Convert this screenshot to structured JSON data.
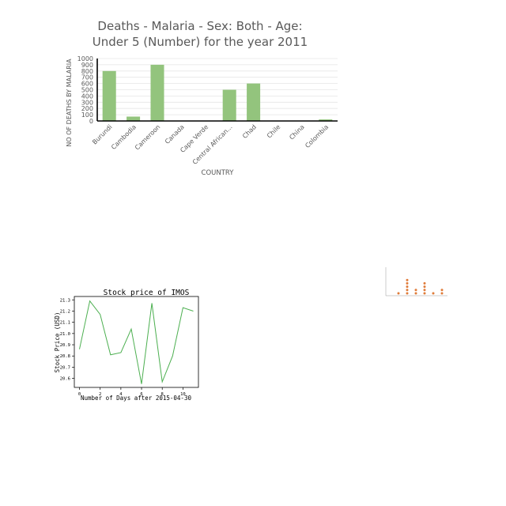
{
  "chart_data": [
    {
      "type": "bar",
      "title_line1": "Deaths - Malaria - Sex: Both - Age:",
      "title_line2": "Under 5 (Number) for the year 2011",
      "xlabel": "COUNTRY",
      "ylabel": "NO OF DEATHS BY MALARIA",
      "categories": [
        "Burundi",
        "Cambodia",
        "Cameroon",
        "Canada",
        "Cape Verde",
        "Central African...",
        "Chad",
        "Chile",
        "China",
        "Colombia"
      ],
      "values": [
        800,
        70,
        900,
        0,
        0,
        500,
        600,
        0,
        0,
        25
      ],
      "yticks": [
        "0",
        "100",
        "200",
        "300",
        "400",
        "500",
        "600",
        "700",
        "800",
        "900",
        "1000"
      ],
      "ylim": [
        0,
        1000
      ],
      "grid": true,
      "color": "#93c47d"
    },
    {
      "type": "line",
      "title": "Stock price of IMOS",
      "xlabel": "Number of Days after 2015-04-30",
      "ylabel": "Stock Price (USD)",
      "x": [
        0,
        1,
        2,
        3,
        4,
        5,
        6,
        7,
        8,
        9,
        10,
        11
      ],
      "values": [
        20.86,
        21.29,
        21.17,
        20.81,
        20.83,
        21.04,
        20.55,
        21.27,
        20.57,
        20.8,
        21.23,
        21.2
      ],
      "xticks": [
        "0",
        "2",
        "4",
        "6",
        "8",
        "10"
      ],
      "yticks": [
        "20.6",
        "20.7",
        "20.8",
        "20.9",
        "21.0",
        "21.1",
        "21.2",
        "21.3"
      ],
      "xlim": [
        -0.5,
        11.5
      ],
      "ylim": [
        20.52,
        21.33
      ],
      "grid": false,
      "color": "#4caf50"
    },
    {
      "type": "scatter",
      "values": [
        [
          1
        ],
        [
          1,
          2,
          3,
          4,
          5
        ],
        [
          1,
          2
        ],
        [
          1,
          2,
          3,
          4
        ],
        [
          1
        ],
        [
          1,
          2
        ]
      ],
      "color": "#e07b39"
    }
  ]
}
